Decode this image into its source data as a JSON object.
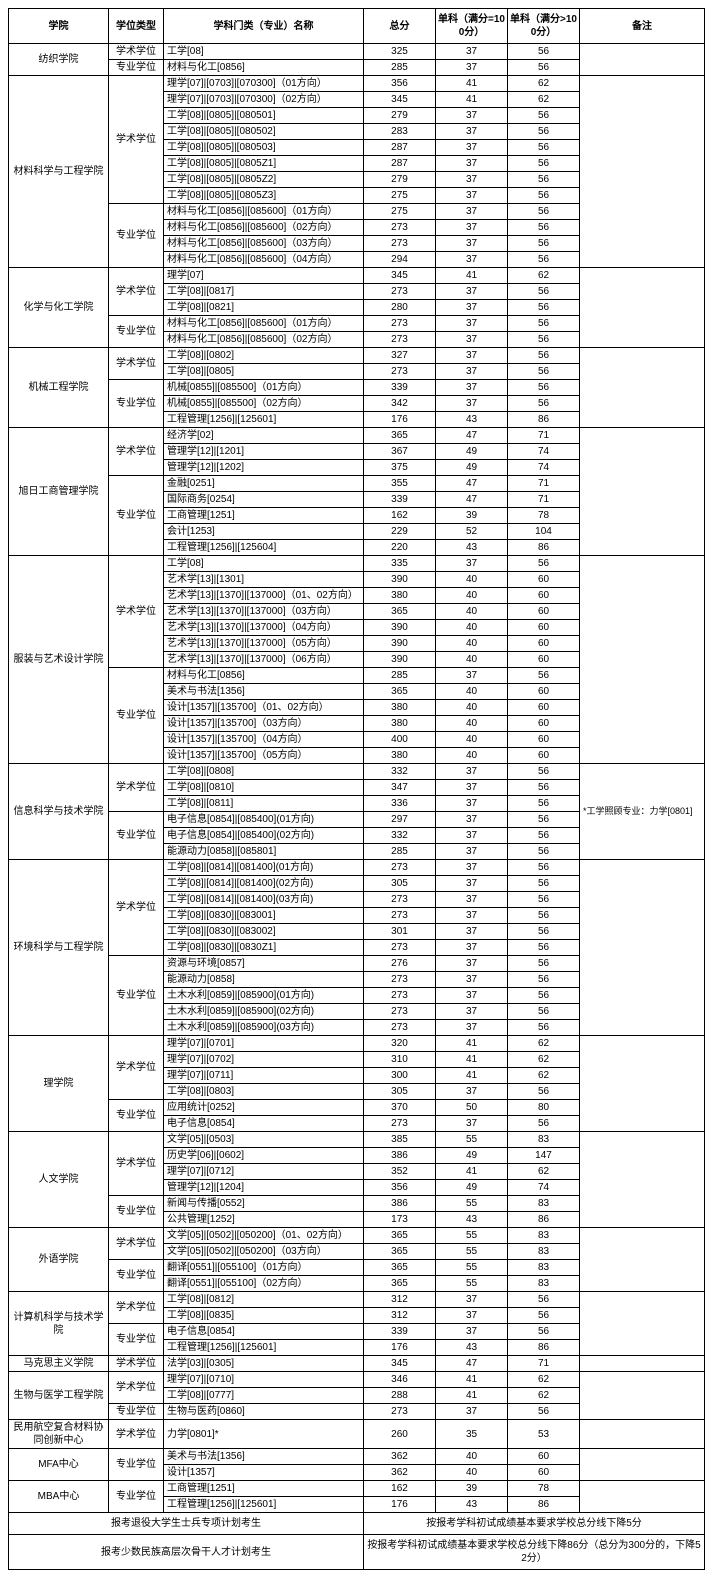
{
  "headers": [
    "学院",
    "学位类型",
    "学科门类（专业）名称",
    "总分",
    "单科（满分=100分）",
    "单科（满分>100分）",
    "备注"
  ],
  "footer": [
    {
      "left": "报考退役大学生士兵专项计划考生",
      "right": "按报考学科初试成绩基本要求学校总分线下降5分"
    },
    {
      "left": "报考少数民族高层次骨干人才计划考生",
      "right": "按报考学科初试成绩基本要求学校总分线下降86分（总分为300分的，下降52分）"
    }
  ],
  "colleges": [
    {
      "name": "纺织学院",
      "remark": "",
      "groups": [
        {
          "degree": "学术学位",
          "rows": [
            [
              "工学[08]",
              "325",
              "37",
              "56"
            ]
          ]
        },
        {
          "degree": "专业学位",
          "rows": [
            [
              "材料与化工[0856]",
              "285",
              "37",
              "56"
            ]
          ]
        }
      ]
    },
    {
      "name": "材料科学与工程学院",
      "remark": "",
      "groups": [
        {
          "degree": "学术学位",
          "rows": [
            [
              "理学[07]|[0703]|[070300]（01方向）",
              "356",
              "41",
              "62"
            ],
            [
              "理学[07]|[0703]|[070300]（02方向）",
              "345",
              "41",
              "62"
            ],
            [
              "工学[08]|[0805]|[080501]",
              "279",
              "37",
              "56"
            ],
            [
              "工学[08]|[0805]|[080502]",
              "283",
              "37",
              "56"
            ],
            [
              "工学[08]|[0805]|[080503]",
              "287",
              "37",
              "56"
            ],
            [
              "工学[08]|[0805]|[0805Z1]",
              "287",
              "37",
              "56"
            ],
            [
              "工学[08]|[0805]|[0805Z2]",
              "279",
              "37",
              "56"
            ],
            [
              "工学[08]|[0805]|[0805Z3]",
              "275",
              "37",
              "56"
            ]
          ]
        },
        {
          "degree": "专业学位",
          "rows": [
            [
              "材料与化工[0856]|[085600]（01方向）",
              "275",
              "37",
              "56"
            ],
            [
              "材料与化工[0856]|[085600]（02方向）",
              "273",
              "37",
              "56"
            ],
            [
              "材料与化工[0856]|[085600]（03方向）",
              "273",
              "37",
              "56"
            ],
            [
              "材料与化工[0856]|[085600]（04方向）",
              "294",
              "37",
              "56"
            ]
          ]
        }
      ]
    },
    {
      "name": "化学与化工学院",
      "remark": "",
      "groups": [
        {
          "degree": "学术学位",
          "rows": [
            [
              "理学[07]",
              "345",
              "41",
              "62"
            ],
            [
              "工学[08]|[0817]",
              "273",
              "37",
              "56"
            ],
            [
              "工学[08]|[0821]",
              "280",
              "37",
              "56"
            ]
          ]
        },
        {
          "degree": "专业学位",
          "rows": [
            [
              "材料与化工[0856]|[085600]（01方向）",
              "273",
              "37",
              "56"
            ],
            [
              "材料与化工[0856]|[085600]（02方向）",
              "273",
              "37",
              "56"
            ]
          ]
        }
      ]
    },
    {
      "name": "机械工程学院",
      "remark": "",
      "groups": [
        {
          "degree": "学术学位",
          "rows": [
            [
              "工学[08]|[0802]",
              "327",
              "37",
              "56"
            ],
            [
              "工学[08]|[0805]",
              "273",
              "37",
              "56"
            ]
          ]
        },
        {
          "degree": "专业学位",
          "rows": [
            [
              "机械[0855]|[085500]（01方向）",
              "339",
              "37",
              "56"
            ],
            [
              "机械[0855]|[085500]（02方向）",
              "342",
              "37",
              "56"
            ],
            [
              "工程管理[1256]|[125601]",
              "176",
              "43",
              "86"
            ]
          ]
        }
      ]
    },
    {
      "name": "旭日工商管理学院",
      "remark": "",
      "groups": [
        {
          "degree": "学术学位",
          "rows": [
            [
              "经济学[02]",
              "365",
              "47",
              "71"
            ],
            [
              "管理学[12]|[1201]",
              "367",
              "49",
              "74"
            ],
            [
              "管理学[12]|[1202]",
              "375",
              "49",
              "74"
            ]
          ]
        },
        {
          "degree": "专业学位",
          "rows": [
            [
              "金融[0251]",
              "355",
              "47",
              "71"
            ],
            [
              "国际商务[0254]",
              "339",
              "47",
              "71"
            ],
            [
              "工商管理[1251]",
              "162",
              "39",
              "78"
            ],
            [
              "会计[1253]",
              "229",
              "52",
              "104"
            ],
            [
              "工程管理[1256]|[125604]",
              "220",
              "43",
              "86"
            ]
          ]
        }
      ]
    },
    {
      "name": "服装与艺术设计学院",
      "remark": "",
      "groups": [
        {
          "degree": "学术学位",
          "rows": [
            [
              "工学[08]",
              "335",
              "37",
              "56"
            ],
            [
              "艺术学[13]|[1301]",
              "390",
              "40",
              "60"
            ],
            [
              "艺术学[13]|[1370]|[137000]（01、02方向）",
              "380",
              "40",
              "60"
            ],
            [
              "艺术学[13]|[1370]|[137000]（03方向）",
              "365",
              "40",
              "60"
            ],
            [
              "艺术学[13]|[1370]|[137000]（04方向）",
              "390",
              "40",
              "60"
            ],
            [
              "艺术学[13]|[1370]|[137000]（05方向）",
              "390",
              "40",
              "60"
            ],
            [
              "艺术学[13]|[1370]|[137000]（06方向）",
              "390",
              "40",
              "60"
            ]
          ]
        },
        {
          "degree": "专业学位",
          "rows": [
            [
              "材料与化工[0856]",
              "285",
              "37",
              "56"
            ],
            [
              "美术与书法[1356]",
              "365",
              "40",
              "60"
            ],
            [
              "设计[1357]|[135700]（01、02方向）",
              "380",
              "40",
              "60"
            ],
            [
              "设计[1357]|[135700]（03方向）",
              "380",
              "40",
              "60"
            ],
            [
              "设计[1357]|[135700]（04方向）",
              "400",
              "40",
              "60"
            ],
            [
              "设计[1357]|[135700]（05方向）",
              "380",
              "40",
              "60"
            ]
          ]
        }
      ]
    },
    {
      "name": "信息科学与技术学院",
      "remark": "*工学照顾专业：力学[0801]",
      "groups": [
        {
          "degree": "学术学位",
          "rows": [
            [
              "工学[08]|[0808]",
              "332",
              "37",
              "56"
            ],
            [
              "工学[08]|[0810]",
              "347",
              "37",
              "56"
            ],
            [
              "工学[08]|[0811]",
              "336",
              "37",
              "56"
            ]
          ]
        },
        {
          "degree": "专业学位",
          "rows": [
            [
              "电子信息[0854]|[085400](01方向)",
              "297",
              "37",
              "56"
            ],
            [
              "电子信息[0854]|[085400](02方向)",
              "332",
              "37",
              "56"
            ],
            [
              "能源动力[0858]|[085801]",
              "285",
              "37",
              "56"
            ]
          ]
        }
      ]
    },
    {
      "name": "环境科学与工程学院",
      "remark": "",
      "groups": [
        {
          "degree": "学术学位",
          "rows": [
            [
              "工学[08]|[0814]|[081400](01方向)",
              "273",
              "37",
              "56"
            ],
            [
              "工学[08]|[0814]|[081400](02方向)",
              "305",
              "37",
              "56"
            ],
            [
              "工学[08]|[0814]|[081400](03方向)",
              "273",
              "37",
              "56"
            ],
            [
              "工学[08]|[0830]|[083001]",
              "273",
              "37",
              "56"
            ],
            [
              "工学[08]|[0830]|[083002]",
              "301",
              "37",
              "56"
            ],
            [
              "工学[08]|[0830]|[0830Z1]",
              "273",
              "37",
              "56"
            ]
          ]
        },
        {
          "degree": "专业学位",
          "rows": [
            [
              "资源与环境[0857]",
              "276",
              "37",
              "56"
            ],
            [
              "能源动力[0858]",
              "273",
              "37",
              "56"
            ],
            [
              "土木水利[0859]|[085900](01方向)",
              "273",
              "37",
              "56"
            ],
            [
              "土木水利[0859]|[085900](02方向)",
              "273",
              "37",
              "56"
            ],
            [
              "土木水利[0859]|[085900](03方向)",
              "273",
              "37",
              "56"
            ]
          ]
        }
      ]
    },
    {
      "name": "理学院",
      "remark": "",
      "groups": [
        {
          "degree": "学术学位",
          "rows": [
            [
              "理学[07]|[0701]",
              "320",
              "41",
              "62"
            ],
            [
              "理学[07]|[0702]",
              "310",
              "41",
              "62"
            ],
            [
              "理学[07]|[0711]",
              "300",
              "41",
              "62"
            ],
            [
              "工学[08]|[0803]",
              "305",
              "37",
              "56"
            ]
          ]
        },
        {
          "degree": "专业学位",
          "rows": [
            [
              "应用统计[0252]",
              "370",
              "50",
              "80"
            ],
            [
              "电子信息[0854]",
              "273",
              "37",
              "56"
            ]
          ]
        }
      ]
    },
    {
      "name": "人文学院",
      "remark": "",
      "groups": [
        {
          "degree": "学术学位",
          "rows": [
            [
              "文学[05]|[0503]",
              "385",
              "55",
              "83"
            ],
            [
              "历史学[06]|[0602]",
              "386",
              "49",
              "147"
            ],
            [
              "理学[07]|[0712]",
              "352",
              "41",
              "62"
            ],
            [
              "管理学[12]|[1204]",
              "356",
              "49",
              "74"
            ]
          ]
        },
        {
          "degree": "专业学位",
          "rows": [
            [
              "新闻与传播[0552]",
              "386",
              "55",
              "83"
            ],
            [
              "公共管理[1252]",
              "173",
              "43",
              "86"
            ]
          ]
        }
      ]
    },
    {
      "name": "外语学院",
      "remark": "",
      "groups": [
        {
          "degree": "学术学位",
          "rows": [
            [
              "文学[05]|[0502]|[050200]（01、02方向）",
              "365",
              "55",
              "83"
            ],
            [
              "文学[05]|[0502]|[050200]（03方向）",
              "365",
              "55",
              "83"
            ]
          ]
        },
        {
          "degree": "专业学位",
          "rows": [
            [
              "翻译[0551]|[055100]（01方向）",
              "365",
              "55",
              "83"
            ],
            [
              "翻译[0551]|[055100]（02方向）",
              "365",
              "55",
              "83"
            ]
          ]
        }
      ]
    },
    {
      "name": "计算机科学与技术学院",
      "remark": "",
      "groups": [
        {
          "degree": "学术学位",
          "rows": [
            [
              "工学[08]|[0812]",
              "312",
              "37",
              "56"
            ],
            [
              "工学[08]|[0835]",
              "312",
              "37",
              "56"
            ]
          ]
        },
        {
          "degree": "专业学位",
          "rows": [
            [
              "电子信息[0854]",
              "339",
              "37",
              "56"
            ],
            [
              "工程管理[1256]|[125601]",
              "176",
              "43",
              "86"
            ]
          ]
        }
      ]
    },
    {
      "name": "马克思主义学院",
      "remark": "",
      "groups": [
        {
          "degree": "学术学位",
          "rows": [
            [
              "法学[03]|[0305]",
              "345",
              "47",
              "71"
            ]
          ]
        }
      ]
    },
    {
      "name": "生物与医学工程学院",
      "remark": "",
      "groups": [
        {
          "degree": "学术学位",
          "rows": [
            [
              "理学[07]|[0710]",
              "346",
              "41",
              "62"
            ],
            [
              "工学[08]|[0777]",
              "288",
              "41",
              "62"
            ]
          ]
        },
        {
          "degree": "专业学位",
          "rows": [
            [
              "生物与医药[0860]",
              "273",
              "37",
              "56"
            ]
          ]
        }
      ]
    },
    {
      "name": "民用航空复合材料协同创新中心",
      "remark": "",
      "groups": [
        {
          "degree": "学术学位",
          "rows": [
            [
              "力学[0801]*",
              "260",
              "35",
              "53"
            ]
          ]
        }
      ]
    },
    {
      "name": "MFA中心",
      "remark": "",
      "groups": [
        {
          "degree": "专业学位",
          "rows": [
            [
              "美术与书法[1356]",
              "362",
              "40",
              "60"
            ],
            [
              "设计[1357]",
              "362",
              "40",
              "60"
            ]
          ]
        }
      ]
    },
    {
      "name": "MBA中心",
      "remark": "",
      "groups": [
        {
          "degree": "专业学位",
          "rows": [
            [
              "工商管理[1251]",
              "162",
              "39",
              "78"
            ],
            [
              "工程管理[1256]|[125601]",
              "176",
              "43",
              "86"
            ]
          ]
        }
      ]
    }
  ]
}
